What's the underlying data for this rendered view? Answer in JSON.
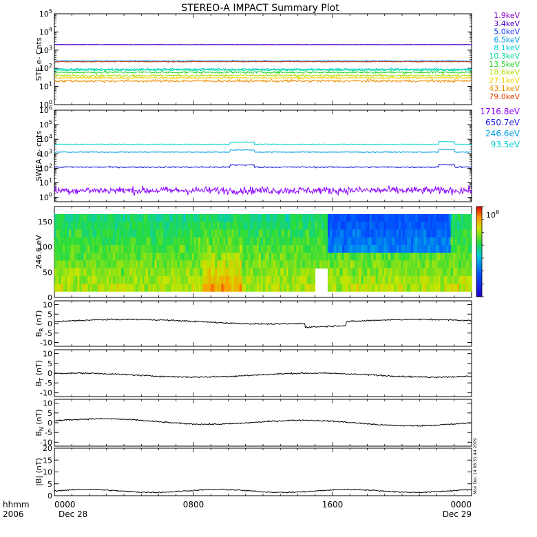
{
  "chart_data": {
    "title": "STEREO-A IMPACT Summary Plot",
    "x_ticks": [
      "0000",
      "0800",
      "1600",
      "0000"
    ],
    "x_sublabels": [
      "Dec 28",
      "Dec 29"
    ],
    "x_corner_labels": [
      "hhmm",
      "2006"
    ],
    "side_stamp": "Mon Dec 14 08:31:44 2009",
    "panels": [
      {
        "type": "line",
        "ylabel": "STE e- Cnts",
        "yscale": "log",
        "ylim": [
          1,
          100000
        ],
        "y_ticks": [
          "10^0",
          "10^1",
          "10^2",
          "10^3",
          "10^4",
          "10^5"
        ],
        "series": [
          {
            "name": "1.9keV",
            "color": "#8a00c8",
            "level": 2000,
            "noise": 0.02
          },
          {
            "name": "3.4keV",
            "color": "#4b00c8",
            "level": 2000,
            "noise": 0.02
          },
          {
            "name": "5.0keV",
            "color": "#1e3cff",
            "level": 250,
            "noise": 0.05
          },
          {
            "name": "6.5keV",
            "color": "#00a0e6",
            "level": 250,
            "noise": 0.05
          },
          {
            "name": "8.1keV",
            "color": "#00d2d2",
            "level": 90,
            "noise": 0.08
          },
          {
            "name": "10.3keV",
            "color": "#00dc96",
            "level": 80,
            "noise": 0.08
          },
          {
            "name": "13.5keV",
            "color": "#28d228",
            "level": 60,
            "noise": 0.1
          },
          {
            "name": "18.6keV",
            "color": "#b4dc00",
            "level": 40,
            "noise": 0.1
          },
          {
            "name": "27.1keV",
            "color": "#f0d200",
            "level": 30,
            "noise": 0.1
          },
          {
            "name": "43.1keV",
            "color": "#f08c00",
            "level": 20,
            "noise": 0.12
          },
          {
            "name": "79.0keV",
            "color": "#e63c00",
            "level": 230,
            "noise": 0.04
          }
        ]
      },
      {
        "type": "line",
        "ylabel": "SWEA e- cnts",
        "yscale": "log",
        "ylim": [
          0.5,
          1000000
        ],
        "y_ticks": [
          "10^0",
          "10^1",
          "10^2",
          "10^3",
          "10^4",
          "10^5",
          "10^6"
        ],
        "series": [
          {
            "name": "1716.8eV",
            "color": "#8a00ff",
            "level": 3,
            "noise": 0.45
          },
          {
            "name": "650.7eV",
            "color": "#1a1adc",
            "level": 120,
            "noise": 0.08
          },
          {
            "name": "246.6eV",
            "color": "#00a0e6",
            "level": 1300,
            "noise": 0.04
          },
          {
            "name": "93.5eV",
            "color": "#00d2d2",
            "level": 4500,
            "noise": 0.04
          }
        ]
      },
      {
        "type": "heatmap",
        "ylabel": "246.6 eV",
        "ylim": [
          0,
          180
        ],
        "y_ticks": [
          "0",
          "50",
          "100",
          "150"
        ],
        "colorbar_label": "10^6"
      },
      {
        "type": "line",
        "ylabel": "B_R (nT)",
        "ylim": [
          -12,
          12
        ],
        "y_ticks": [
          "-10",
          "-5",
          "0",
          "5",
          "10"
        ],
        "series": [
          {
            "color": "#000000"
          }
        ]
      },
      {
        "type": "line",
        "ylabel": "B_T (nT)",
        "ylim": [
          -12,
          12
        ],
        "y_ticks": [
          "-10",
          "-5",
          "0",
          "5",
          "10"
        ],
        "series": [
          {
            "color": "#000000"
          }
        ]
      },
      {
        "type": "line",
        "ylabel": "B_N (nT)",
        "ylim": [
          -12,
          12
        ],
        "y_ticks": [
          "-10",
          "-5",
          "0",
          "5",
          "10"
        ],
        "series": [
          {
            "color": "#000000"
          }
        ]
      },
      {
        "type": "line",
        "ylabel": "|B| (nT)",
        "ylim": [
          0,
          20
        ],
        "y_ticks": [
          "0",
          "5",
          "10",
          "15",
          "20"
        ],
        "series": [
          {
            "color": "#000000"
          }
        ]
      }
    ]
  }
}
